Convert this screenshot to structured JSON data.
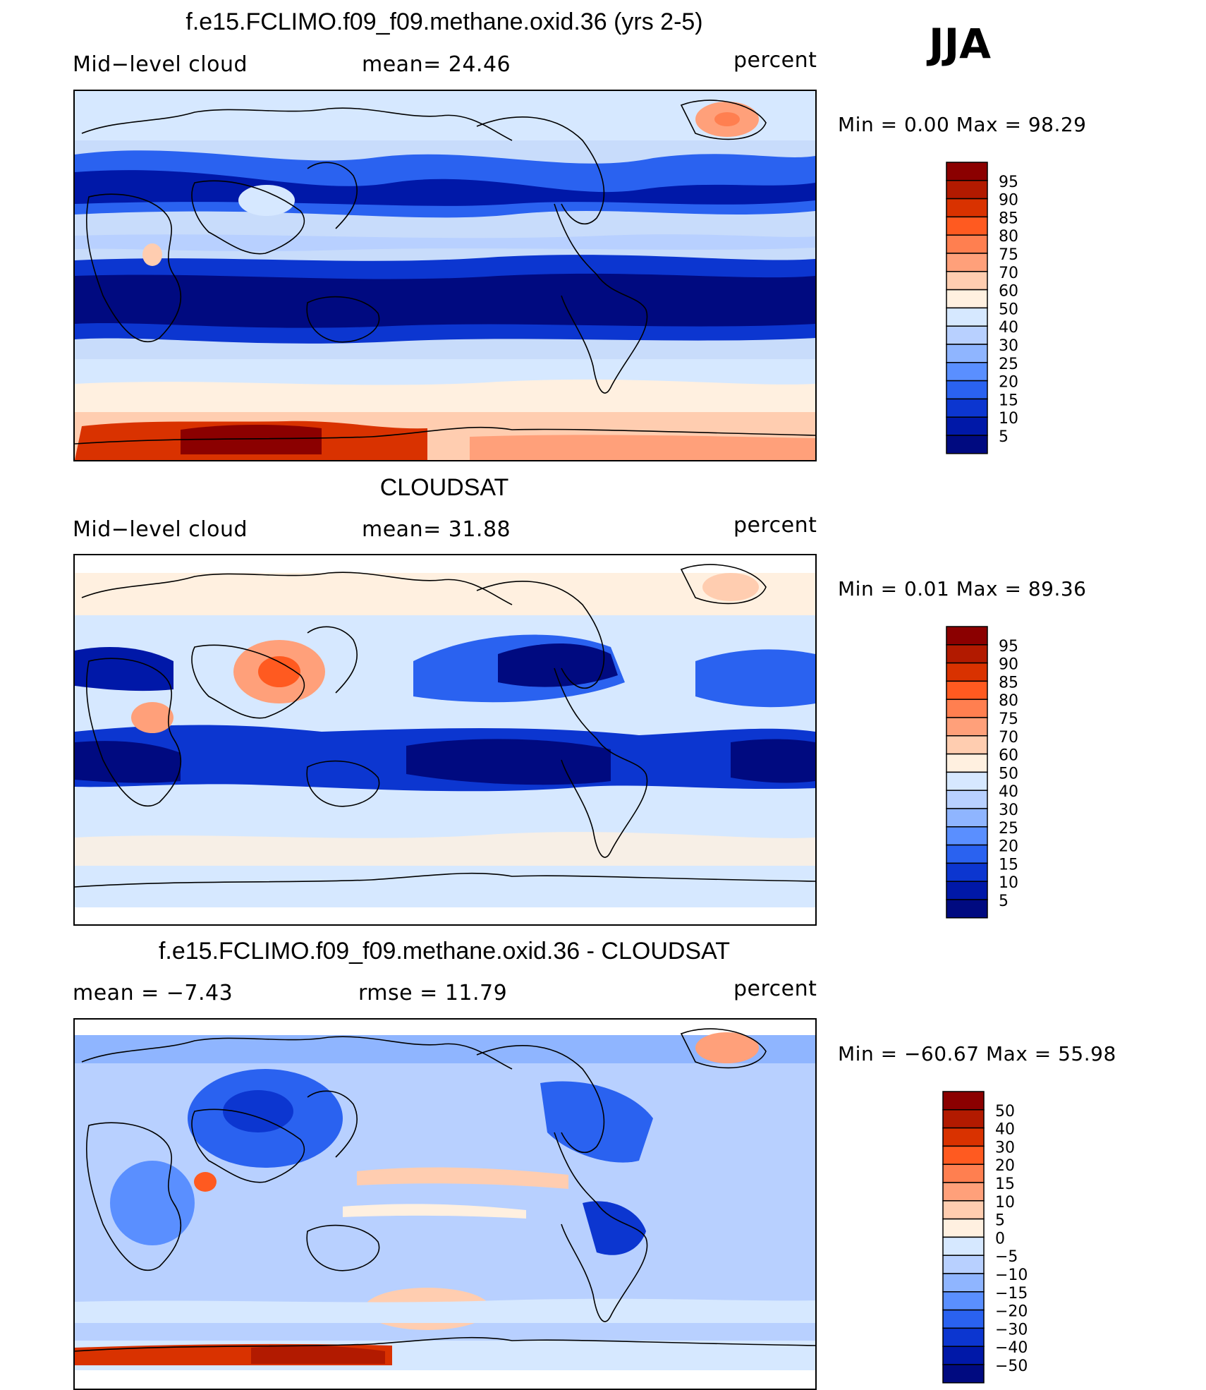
{
  "season": "JJA",
  "panels": [
    {
      "id": "model",
      "title": "f.e15.FCLIMO.f09_f09.methane.oxid.36 (yrs 2-5)",
      "left_label": "Mid−level cloud",
      "center_label": "mean=   24.46",
      "right_label": "percent",
      "stats": "Min  =     0.00  Max  =    98.29",
      "colorbar_labels": [
        "95",
        "90",
        "85",
        "80",
        "75",
        "70",
        "60",
        "50",
        "40",
        "30",
        "25",
        "20",
        "15",
        "10",
        "5"
      ],
      "colors": [
        "#8b0000",
        "#b21a00",
        "#d93200",
        "#ff5a20",
        "#ff7f50",
        "#ffa07a",
        "#ffcdb0",
        "#fff0e0",
        "#d6e8ff",
        "#b8d0ff",
        "#8fb5ff",
        "#5a8fff",
        "#2a62f0",
        "#0c36d0",
        "#0018a8",
        "#000a80"
      ]
    },
    {
      "id": "obs",
      "title": "CLOUDSAT",
      "left_label": "Mid−level cloud",
      "center_label": "mean=   31.88",
      "right_label": "percent",
      "stats": "Min  =     0.01  Max  =    89.36",
      "colorbar_labels": [
        "95",
        "90",
        "85",
        "80",
        "75",
        "70",
        "60",
        "50",
        "40",
        "30",
        "25",
        "20",
        "15",
        "10",
        "5"
      ],
      "colors": [
        "#8b0000",
        "#b21a00",
        "#d93200",
        "#ff5a20",
        "#ff7f50",
        "#ffa07a",
        "#ffcdb0",
        "#fff0e0",
        "#d6e8ff",
        "#b8d0ff",
        "#8fb5ff",
        "#5a8fff",
        "#2a62f0",
        "#0c36d0",
        "#0018a8",
        "#000a80"
      ]
    },
    {
      "id": "diff",
      "title": "f.e15.FCLIMO.f09_f09.methane.oxid.36 - CLOUDSAT",
      "left_label": "mean  =    −7.43",
      "center_label": "rmse  =    11.79",
      "right_label": "percent",
      "stats": "Min  = −60.67  Max  =    55.98",
      "colorbar_labels": [
        "50",
        "40",
        "30",
        "20",
        "15",
        "10",
        "5",
        "0",
        "−5",
        "−10",
        "−15",
        "−20",
        "−30",
        "−40",
        "−50"
      ],
      "colors": [
        "#8b0000",
        "#b21a00",
        "#d93200",
        "#ff5a20",
        "#ff7f50",
        "#ffa07a",
        "#ffcdb0",
        "#fff0e0",
        "#d6e8ff",
        "#b8d0ff",
        "#8fb5ff",
        "#5a8fff",
        "#2a62f0",
        "#0c36d0",
        "#0018a8",
        "#000a80"
      ]
    }
  ]
}
